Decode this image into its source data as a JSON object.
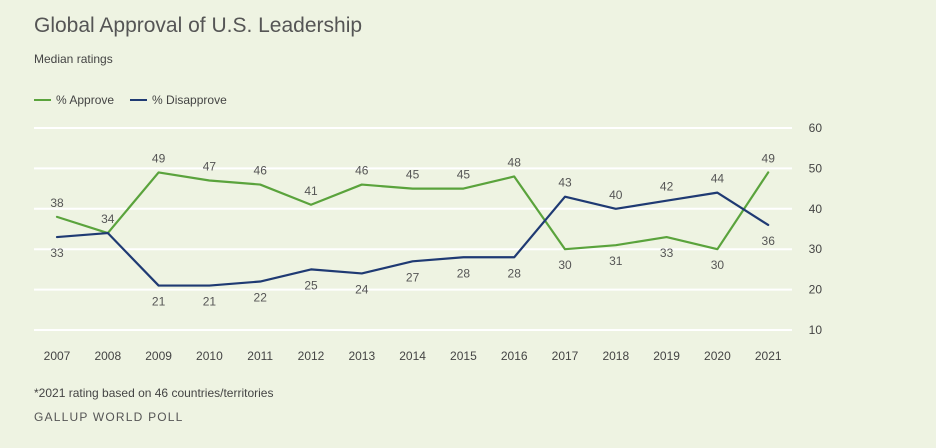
{
  "title": "Global Approval of U.S. Leadership",
  "subtitle": "Median ratings",
  "footnote": "*2021 rating based on 46 countries/territories",
  "source": "GALLUP WORLD POLL",
  "colors": {
    "approve": "#5aa33c",
    "disapprove": "#1f3a73",
    "grid": "#ffffff",
    "label": "#555555"
  },
  "chart_data": {
    "type": "line",
    "title": "Global Approval of U.S. Leadership",
    "subtitle": "Median ratings",
    "categories": [
      "2007",
      "2008",
      "2009",
      "2010",
      "2011",
      "2012",
      "2013",
      "2014",
      "2015",
      "2016",
      "2017",
      "2018",
      "2019",
      "2020",
      "2021"
    ],
    "series": [
      {
        "name": "% Approve",
        "key": "approve",
        "values": [
          38,
          34,
          49,
          47,
          46,
          41,
          46,
          45,
          45,
          48,
          30,
          31,
          33,
          30,
          49
        ]
      },
      {
        "name": "% Disapprove",
        "key": "disapprove",
        "values": [
          33,
          34,
          21,
          21,
          22,
          25,
          24,
          27,
          28,
          28,
          43,
          40,
          42,
          44,
          36
        ]
      }
    ],
    "yticks": [
      10,
      20,
      30,
      40,
      50,
      60
    ],
    "ylim": [
      10,
      60
    ],
    "grid": true,
    "legend": "top-left",
    "labels": {
      "approve": [
        "38",
        "34",
        "49",
        "47",
        "46",
        "41",
        "46",
        "45",
        "45",
        "48",
        "30",
        "31",
        "33",
        "30",
        "49"
      ],
      "disapprove": [
        "33",
        "",
        "21",
        "21",
        "22",
        "25",
        "24",
        "27",
        "28",
        "28",
        "43",
        "40",
        "42",
        "44",
        "36"
      ]
    }
  }
}
